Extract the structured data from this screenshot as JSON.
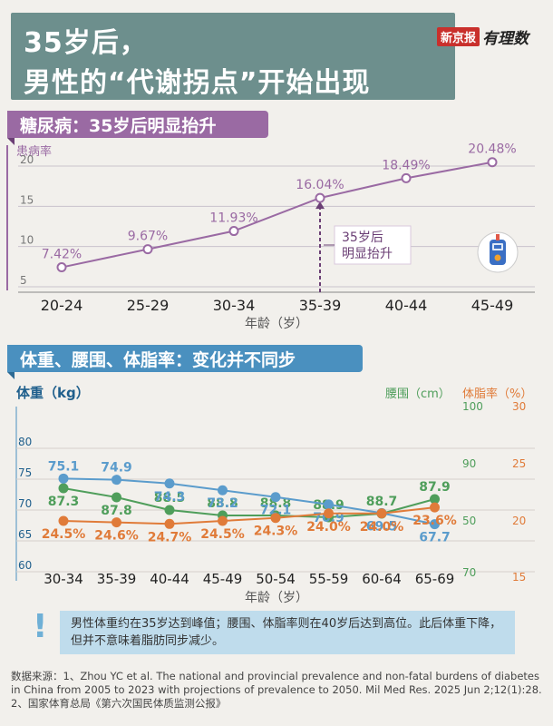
{
  "title": {
    "line1": "35岁后，",
    "line2": "男性的“代谢拐点”开始出现"
  },
  "logo": {
    "red": "新京报",
    "script": "有理数"
  },
  "colors": {
    "purple": "#9a6aa3",
    "blue": "#4a90bf",
    "green": "#4f9e5b",
    "orange": "#e07b39",
    "steel": "#5b9ccc"
  },
  "section1": {
    "title": "糖尿病：35岁后明显抬升"
  },
  "section2": {
    "title": "体重、腰围、体脂率：变化并不同步"
  },
  "chart_data": [
    {
      "type": "line",
      "title": "糖尿病：35岁后明显抬升",
      "ylabel": "患病率",
      "xlabel": "年龄（岁）",
      "categories": [
        "20-24",
        "25-29",
        "30-34",
        "35-39",
        "40-44",
        "45-49"
      ],
      "ylim": [
        5,
        20
      ],
      "yticks": [
        5,
        10,
        15,
        20
      ],
      "series": [
        {
          "values": [
            7.42,
            9.67,
            11.93,
            16.04,
            18.49,
            20.48
          ],
          "labels": [
            "7.42%",
            "9.67%",
            "11.93%",
            "16.04%",
            "18.49%",
            "20.48%"
          ]
        }
      ],
      "annotation": {
        "category": "35-39",
        "line1": "35岁后",
        "line2": "明显抬升"
      },
      "icon": "glucose-meter-icon",
      "grid": true
    },
    {
      "type": "line",
      "title": "体重、腰围、体脂率：变化并不同步",
      "xlabel": "年龄（岁）",
      "categories": [
        "30-34",
        "35-39",
        "40-44",
        "45-49",
        "50-54",
        "55-59",
        "60-64",
        "65-69"
      ],
      "axes": {
        "weight": {
          "label": "体重（kg）",
          "ticks": [
            "60",
            "65",
            "70",
            "75",
            "80"
          ],
          "ylim": [
            60,
            82
          ]
        },
        "waist": {
          "label": "腰围（cm）",
          "ticks": [
            "70",
            "50",
            "90",
            "100"
          ]
        },
        "bodyfat": {
          "label": "体脂率（%）",
          "ticks": [
            "15",
            "20",
            "25",
            "30"
          ]
        }
      },
      "series": [
        {
          "name": "腰围",
          "values": [
            87.3,
            87.8,
            88.5,
            88.8,
            88.8,
            88.9,
            88.7,
            87.9
          ],
          "labels": [
            "87.3",
            "87.8",
            "88.5",
            "88.8",
            "88.8",
            "88.9",
            "88.7",
            "87.9"
          ]
        },
        {
          "name": "体重",
          "values": [
            75.1,
            74.9,
            74.3,
            73.2,
            72.1,
            70.9,
            69.5,
            67.7
          ],
          "labels": [
            "75.1",
            "74.9",
            "74.3",
            "73.2",
            "72.1",
            "70.9",
            "69.5",
            "67.7"
          ]
        },
        {
          "name": "体脂率",
          "values": [
            24.5,
            24.6,
            24.7,
            24.5,
            24.3,
            24.0,
            24.0,
            23.6
          ],
          "labels": [
            "24.5%",
            "24.6%",
            "24.7%",
            "24.5%",
            "24.3%",
            "24.0%",
            "24.0%",
            "23.6%"
          ]
        }
      ],
      "grid": true
    }
  ],
  "note": {
    "mark": "!",
    "text": "男性体重约在35岁达到峰值；腰围、体脂率则在40岁后达到高位。此后体重下降，但并不意味着脂肪同步减少。"
  },
  "footer": {
    "line1": "数据来源：1、Zhou YC et al. The national and provincial prevalence and non-fatal burdens of diabetes in China from 2005 to 2023 with projections of prevalence to 2050. Mil Med Res. 2025 Jun 2;12(1):28.",
    "line2": "2、国家体育总局《第六次国民体质监测公报》"
  }
}
